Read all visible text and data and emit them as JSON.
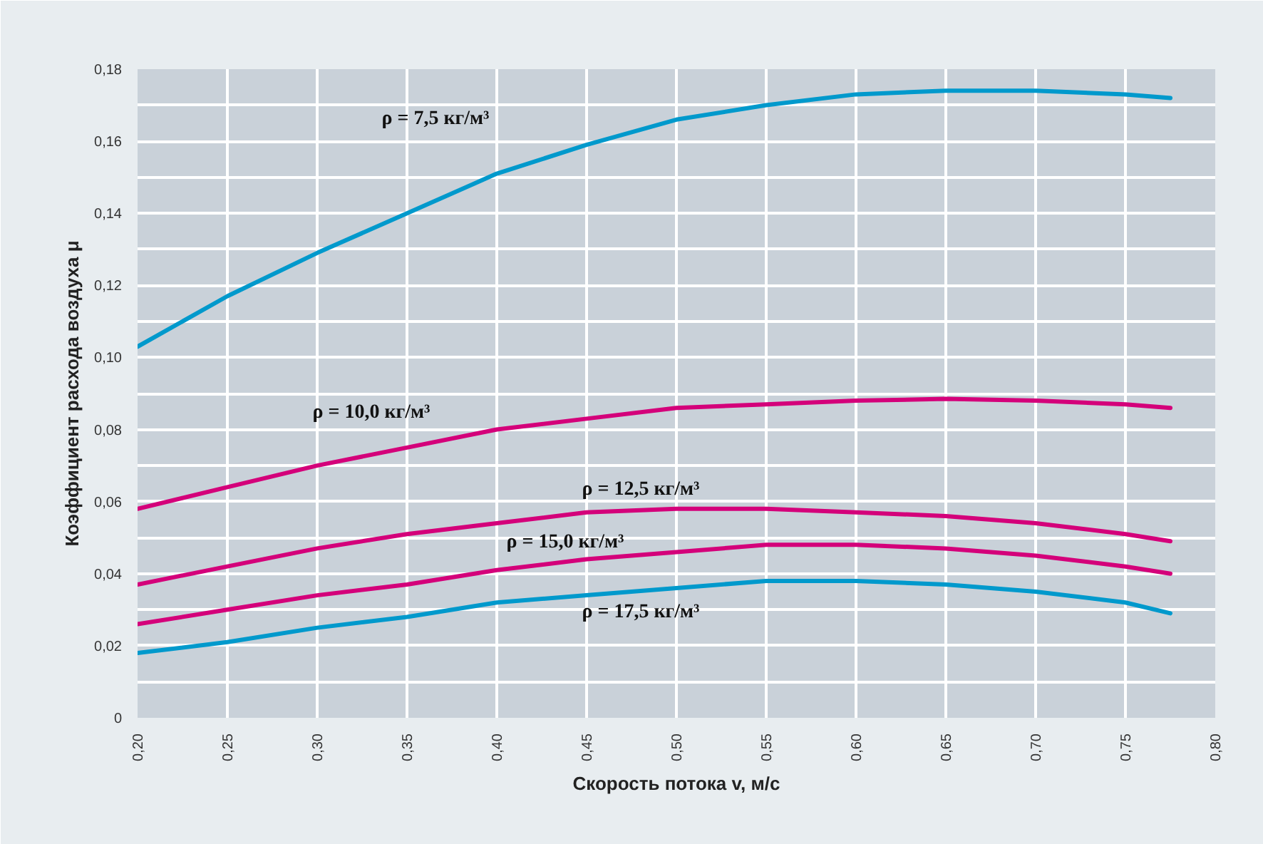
{
  "chart_data": {
    "type": "line",
    "xlabel": "Скорость потока v, м/с",
    "ylabel": "Коэффициент расхода воздуха μ",
    "x": [
      0.2,
      0.25,
      0.3,
      0.35,
      0.4,
      0.45,
      0.5,
      0.55,
      0.6,
      0.65,
      0.7,
      0.75,
      0.775
    ],
    "series": [
      {
        "name": "ρ = 7,5 кг/м³",
        "color": "#0099cc",
        "values": [
          0.103,
          0.117,
          0.129,
          0.14,
          0.151,
          0.159,
          0.166,
          0.17,
          0.173,
          0.174,
          0.174,
          0.173,
          0.172
        ]
      },
      {
        "name": "ρ = 10,0 кг/м³",
        "color": "#d4007a",
        "values": [
          0.058,
          0.064,
          0.07,
          0.075,
          0.08,
          0.083,
          0.086,
          0.087,
          0.088,
          0.0885,
          0.088,
          0.087,
          0.086
        ]
      },
      {
        "name": "ρ = 12,5 кг/м³",
        "color": "#d4007a",
        "values": [
          0.037,
          0.042,
          0.047,
          0.051,
          0.054,
          0.057,
          0.058,
          0.058,
          0.057,
          0.056,
          0.054,
          0.051,
          0.049
        ]
      },
      {
        "name": "ρ = 15,0 кг/м³",
        "color": "#d4007a",
        "values": [
          0.026,
          0.03,
          0.034,
          0.037,
          0.041,
          0.044,
          0.046,
          0.048,
          0.048,
          0.047,
          0.045,
          0.042,
          0.04
        ]
      },
      {
        "name": "ρ = 17,5 кг/м³",
        "color": "#0099cc",
        "values": [
          0.018,
          0.021,
          0.025,
          0.028,
          0.032,
          0.034,
          0.036,
          0.038,
          0.038,
          0.037,
          0.035,
          0.032,
          0.029
        ]
      }
    ],
    "xlim": [
      0.2,
      0.8
    ],
    "xticks": [
      {
        "value": 0.2,
        "label": "0,20"
      },
      {
        "value": 0.25,
        "label": "0,25"
      },
      {
        "value": 0.3,
        "label": "0,30"
      },
      {
        "value": 0.35,
        "label": "0,35"
      },
      {
        "value": 0.4,
        "label": "0,40"
      },
      {
        "value": 0.45,
        "label": "0,45"
      },
      {
        "value": 0.5,
        "label": "0,50"
      },
      {
        "value": 0.55,
        "label": "0,55"
      },
      {
        "value": 0.6,
        "label": "0,60"
      },
      {
        "value": 0.65,
        "label": "0,65"
      },
      {
        "value": 0.7,
        "label": "0,70"
      },
      {
        "value": 0.75,
        "label": "0,75"
      },
      {
        "value": 0.8,
        "label": "0,80"
      }
    ],
    "ylim": [
      0,
      0.18
    ],
    "yticks": [
      0,
      {
        "value": 0.01,
        "label": null
      },
      {
        "value": 0.02,
        "label": "0,02"
      },
      {
        "value": 0.03,
        "label": null
      },
      {
        "value": 0.04,
        "label": "0,04"
      },
      {
        "value": 0.05,
        "label": null
      },
      {
        "value": 0.06,
        "label": "0,06"
      },
      {
        "value": 0.07,
        "label": null
      },
      {
        "value": 0.08,
        "label": "0,08"
      },
      {
        "value": 0.09,
        "label": null
      },
      {
        "value": 0.1,
        "label": "0,10"
      },
      {
        "value": 0.11,
        "label": null
      },
      {
        "value": 0.12,
        "label": "0,12"
      },
      {
        "value": 0.13,
        "label": null
      },
      {
        "value": 0.14,
        "label": "0,14"
      },
      {
        "value": 0.15,
        "label": null
      },
      {
        "value": 0.16,
        "label": "0,16"
      },
      {
        "value": 0.17,
        "label": null
      },
      {
        "value": 0.18,
        "label": "0,18"
      }
    ],
    "grid": true,
    "line_style": "solid"
  }
}
